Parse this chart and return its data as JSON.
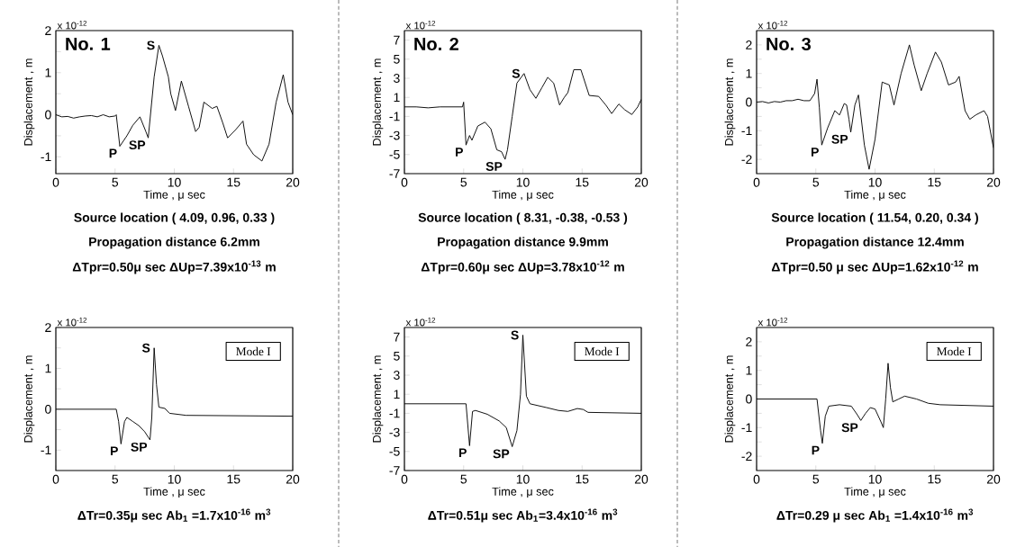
{
  "chart_data": [
    {
      "type": "line",
      "title": "No. 1",
      "xlabel": "Time , μ sec",
      "ylabel": "Displacement , m",
      "color": "#000000",
      "xlim": [
        0,
        20
      ],
      "ylim": [
        -1.4,
        2
      ],
      "xticks": [
        0,
        5,
        10,
        15,
        20
      ],
      "yticks": [
        -1,
        {
          "value": -0.5,
          "label": null
        },
        0,
        {
          "value": 0.5,
          "label": null
        },
        1,
        {
          "value": 1.5,
          "label": null
        },
        2
      ],
      "x": [
        0,
        0.5,
        1,
        1.5,
        2,
        2.5,
        3,
        3.5,
        4,
        4.5,
        5,
        5.1,
        5.4,
        6,
        6.5,
        7.1,
        7.6,
        7.8,
        8.3,
        8.7,
        9,
        9.5,
        9.7,
        10.1,
        10.6,
        11.2,
        11.8,
        12.1,
        12.5,
        13.2,
        13.6,
        14.1,
        14.5,
        15.2,
        15.8,
        16.1,
        16.7,
        17.4,
        18,
        18.6,
        19.2,
        19.6,
        20
      ],
      "values": [
        0,
        -0.05,
        -0.04,
        -0.08,
        -0.05,
        -0.03,
        -0.02,
        -0.05,
        0,
        -0.05,
        -0.03,
        0,
        -0.75,
        -0.5,
        -0.25,
        -0.05,
        -0.4,
        -0.55,
        0.9,
        1.65,
        1.4,
        0.9,
        0.5,
        0.1,
        0.8,
        0.2,
        -0.4,
        -0.3,
        0.3,
        0.15,
        0.2,
        -0.2,
        -0.55,
        -0.35,
        -0.15,
        -0.7,
        -0.95,
        -1.1,
        -0.7,
        0.3,
        0.95,
        0.3,
        0
      ],
      "annotations": [
        "x 10$^{-12}$",
        "Source location ( 4.09, 0.96, 0.33 )",
        "Propagation distance  6.2mm",
        "ΔTpr=0.50μ sec  ΔUp=7.39x10$^{-13}$ m",
        {
          "text": "S",
          "x": 8.7,
          "y": 1.65
        },
        {
          "text": "P",
          "x": 5.4,
          "y": -0.75
        },
        {
          "text": "SP",
          "x": 7.8,
          "y": -0.55
        }
      ]
    },
    {
      "type": "line",
      "title": "No. 2",
      "xlabel": "Time , μ sec",
      "ylabel": "Displacement , m",
      "color": "#000000",
      "xlim": [
        0,
        20
      ],
      "ylim": [
        -7,
        8
      ],
      "xticks": [
        0,
        5,
        10,
        15,
        20
      ],
      "yticks": [
        -7,
        -5,
        -3,
        -1,
        1,
        3,
        5,
        7
      ],
      "x": [
        0,
        1,
        2,
        3,
        4,
        4.9,
        5,
        5.2,
        5.5,
        5.7,
        6.2,
        6.8,
        7.3,
        7.8,
        8.2,
        8.5,
        8.7,
        9.1,
        9.5,
        10.1,
        10.6,
        11.1,
        11.6,
        12.1,
        12.6,
        13.1,
        13.5,
        13.8,
        14.3,
        14.9,
        15.6,
        16.4,
        17,
        17.5,
        18.1,
        18.6,
        19.2,
        19.7,
        20
      ],
      "values": [
        0,
        0,
        -0.1,
        0,
        0,
        0,
        0.5,
        -4,
        -3,
        -3.5,
        -2,
        -1.6,
        -2.3,
        -4.5,
        -4.7,
        -5.5,
        -4.5,
        -1,
        2.5,
        3.5,
        1.8,
        0.9,
        2,
        3.1,
        2.5,
        0.2,
        1,
        1.5,
        3.9,
        3.9,
        1.2,
        1.1,
        0.2,
        -0.7,
        0.3,
        -0.3,
        -0.8,
        0,
        0.8
      ],
      "annotations": [
        "x 10$^{-12}$",
        "Source location ( 8.31, -0.38, -0.53 )",
        "Propagation distance  9.9mm",
        "ΔTpr=0.60μ sec  ΔUp=3.78x10$^{-12}$ m",
        {
          "text": "S",
          "x": 10.1,
          "y": 3.5
        },
        {
          "text": "P",
          "x": 5.2,
          "y": -4
        },
        {
          "text": "SP",
          "x": 8.5,
          "y": -5.5
        }
      ]
    },
    {
      "type": "line",
      "title": "No. 3",
      "xlabel": "Time , μ sec",
      "ylabel": "Displacement , m",
      "color": "#000000",
      "xlim": [
        0,
        20
      ],
      "ylim": [
        -2.5,
        2.5
      ],
      "xticks": [
        0,
        5,
        10,
        15,
        20
      ],
      "yticks": [
        -2,
        {
          "value": -1.5,
          "label": null
        },
        -1,
        {
          "value": -0.5,
          "label": null
        },
        0,
        {
          "value": 0.5,
          "label": null
        },
        1,
        {
          "value": 1.5,
          "label": null
        },
        2
      ],
      "x": [
        0,
        0.5,
        1,
        1.5,
        2,
        2.5,
        3,
        3.5,
        4,
        4.5,
        4.9,
        5.1,
        5.3,
        5.5,
        6,
        6.6,
        7,
        7.4,
        7.6,
        7.8,
        7.95,
        8.3,
        8.6,
        9.1,
        9.5,
        10,
        10.6,
        11.2,
        11.6,
        12.2,
        12.9,
        13.3,
        13.9,
        14.4,
        15.1,
        15.6,
        16.2,
        16.8,
        17.1,
        17.6,
        18,
        18.5,
        19.2,
        19.5,
        20
      ],
      "values": [
        0,
        0.02,
        -0.03,
        0.02,
        0,
        0.05,
        0.05,
        0.1,
        0.05,
        0.05,
        0.3,
        0.8,
        -0.2,
        -1.5,
        -0.9,
        -0.3,
        -0.45,
        -0.05,
        -0.1,
        -0.6,
        -1.05,
        -0.1,
        0.25,
        -1.5,
        -2.35,
        -1.3,
        0.7,
        0.6,
        -0.1,
        1,
        2,
        1.3,
        0.4,
        1,
        1.75,
        1.4,
        0.6,
        0.7,
        0.9,
        -0.3,
        -0.6,
        -0.45,
        -0.3,
        -0.5,
        -1.6
      ],
      "annotations": [
        "x 10$^{-12}$",
        "Source location ( 11.54, 0.20, 0.34 )",
        "Propagation distance  12.4mm",
        "ΔTpr=0.50 μ sec  ΔUp=1.62x10$^{-12}$ m",
        {
          "text": "P",
          "x": 5.5,
          "y": -1.5
        },
        {
          "text": "SP",
          "x": 7.95,
          "y": -1.05
        }
      ]
    },
    {
      "type": "line",
      "subtitle": "Mode I",
      "xlabel": "Time , μ sec",
      "ylabel": "Displacement , m",
      "color": "#000000",
      "xlim": [
        0,
        20
      ],
      "ylim": [
        -1.5,
        2
      ],
      "xticks": [
        0,
        5,
        10,
        15,
        20
      ],
      "yticks": [
        -1,
        {
          "value": -0.5,
          "label": null
        },
        0,
        {
          "value": 0.5,
          "label": null
        },
        1,
        {
          "value": 1.5,
          "label": null
        },
        2
      ],
      "x": [
        0,
        5.1,
        5.3,
        5.5,
        5.8,
        6,
        6.5,
        7,
        7.5,
        7.95,
        8.1,
        8.3,
        8.5,
        8.7,
        9.2,
        9.6,
        11,
        20
      ],
      "values": [
        0,
        0,
        -0.3,
        -0.85,
        -0.3,
        -0.2,
        -0.3,
        -0.4,
        -0.55,
        -0.75,
        -0.2,
        1.5,
        0.6,
        0.05,
        0.02,
        -0.1,
        -0.15,
        -0.17
      ],
      "annotations": [
        "x 10$^{-12}$",
        "ΔTr=0.35μ sec   Ab$_{1}$ =1.7x10$^{-16}$ m$^{3}$",
        {
          "text": "S",
          "x": 8.3,
          "y": 1.5
        },
        {
          "text": "P",
          "x": 5.5,
          "y": -0.85
        },
        {
          "text": "SP",
          "x": 7.95,
          "y": -0.75
        }
      ]
    },
    {
      "type": "line",
      "subtitle": "Mode I",
      "xlabel": "Time , μ sec",
      "ylabel": "Displacement , m",
      "color": "#000000",
      "xlim": [
        0,
        20
      ],
      "ylim": [
        -7,
        8
      ],
      "xticks": [
        0,
        5,
        10,
        15,
        20
      ],
      "yticks": [
        -7,
        -5,
        -3,
        -1,
        1,
        3,
        5,
        7
      ],
      "x": [
        0,
        5.2,
        5.5,
        5.75,
        6,
        7,
        8,
        8.6,
        9.1,
        9.5,
        9.8,
        10,
        10.3,
        10.6,
        12,
        13,
        13.8,
        14.6,
        15.1,
        15.5,
        20
      ],
      "values": [
        0,
        0,
        -4.4,
        -0.8,
        -0.7,
        -1.1,
        -1.8,
        -2.5,
        -4.5,
        -2.8,
        1,
        7.2,
        0.8,
        0,
        -0.4,
        -0.7,
        -0.8,
        -0.5,
        -0.6,
        -0.9,
        -1
      ],
      "annotations": [
        "x 10$^{-12}$",
        "ΔTr=0.51μ sec   Ab$_{1}$=3.4x10$^{-16}$ m$^{3}$",
        {
          "text": "S",
          "x": 10,
          "y": 7.2
        },
        {
          "text": "P",
          "x": 5.5,
          "y": -4.4
        },
        {
          "text": "SP",
          "x": 9.1,
          "y": -4.5
        }
      ]
    },
    {
      "type": "line",
      "subtitle": "Mode I",
      "xlabel": "Time , μ sec",
      "ylabel": "Displacement , m",
      "color": "#000000",
      "xlim": [
        0,
        20
      ],
      "ylim": [
        -2.5,
        2.5
      ],
      "xticks": [
        0,
        5,
        10,
        15,
        20
      ],
      "yticks": [
        -2,
        {
          "value": -1.5,
          "label": null
        },
        -1,
        {
          "value": -0.5,
          "label": null
        },
        0,
        {
          "value": 0.5,
          "label": null
        },
        1,
        {
          "value": 1.5,
          "label": null
        },
        2
      ],
      "x": [
        0,
        5.1,
        5.4,
        5.55,
        5.8,
        6.1,
        7,
        8,
        8.5,
        8.8,
        9.2,
        9.6,
        10,
        10.5,
        10.7,
        10.9,
        11.1,
        11.3,
        11.5,
        12,
        12.5,
        13.5,
        14.5,
        15.5,
        20
      ],
      "values": [
        0,
        0,
        -1.1,
        -1.55,
        -0.6,
        -0.25,
        -0.2,
        -0.25,
        -0.55,
        -0.75,
        -0.5,
        -0.3,
        -0.35,
        -0.8,
        -1,
        0,
        1.25,
        0.4,
        -0.1,
        0,
        0.1,
        0,
        -0.15,
        -0.2,
        -0.25
      ],
      "annotations": [
        "x 10$^{-12}$",
        "ΔTr=0.29 μ sec   Ab$_{1}$ =1.4x10$^{-16}$ m$^{3}$",
        {
          "text": "P",
          "x": 5.55,
          "y": -1.55
        },
        {
          "text": "SP",
          "x": 8.8,
          "y": -0.75
        }
      ]
    }
  ]
}
